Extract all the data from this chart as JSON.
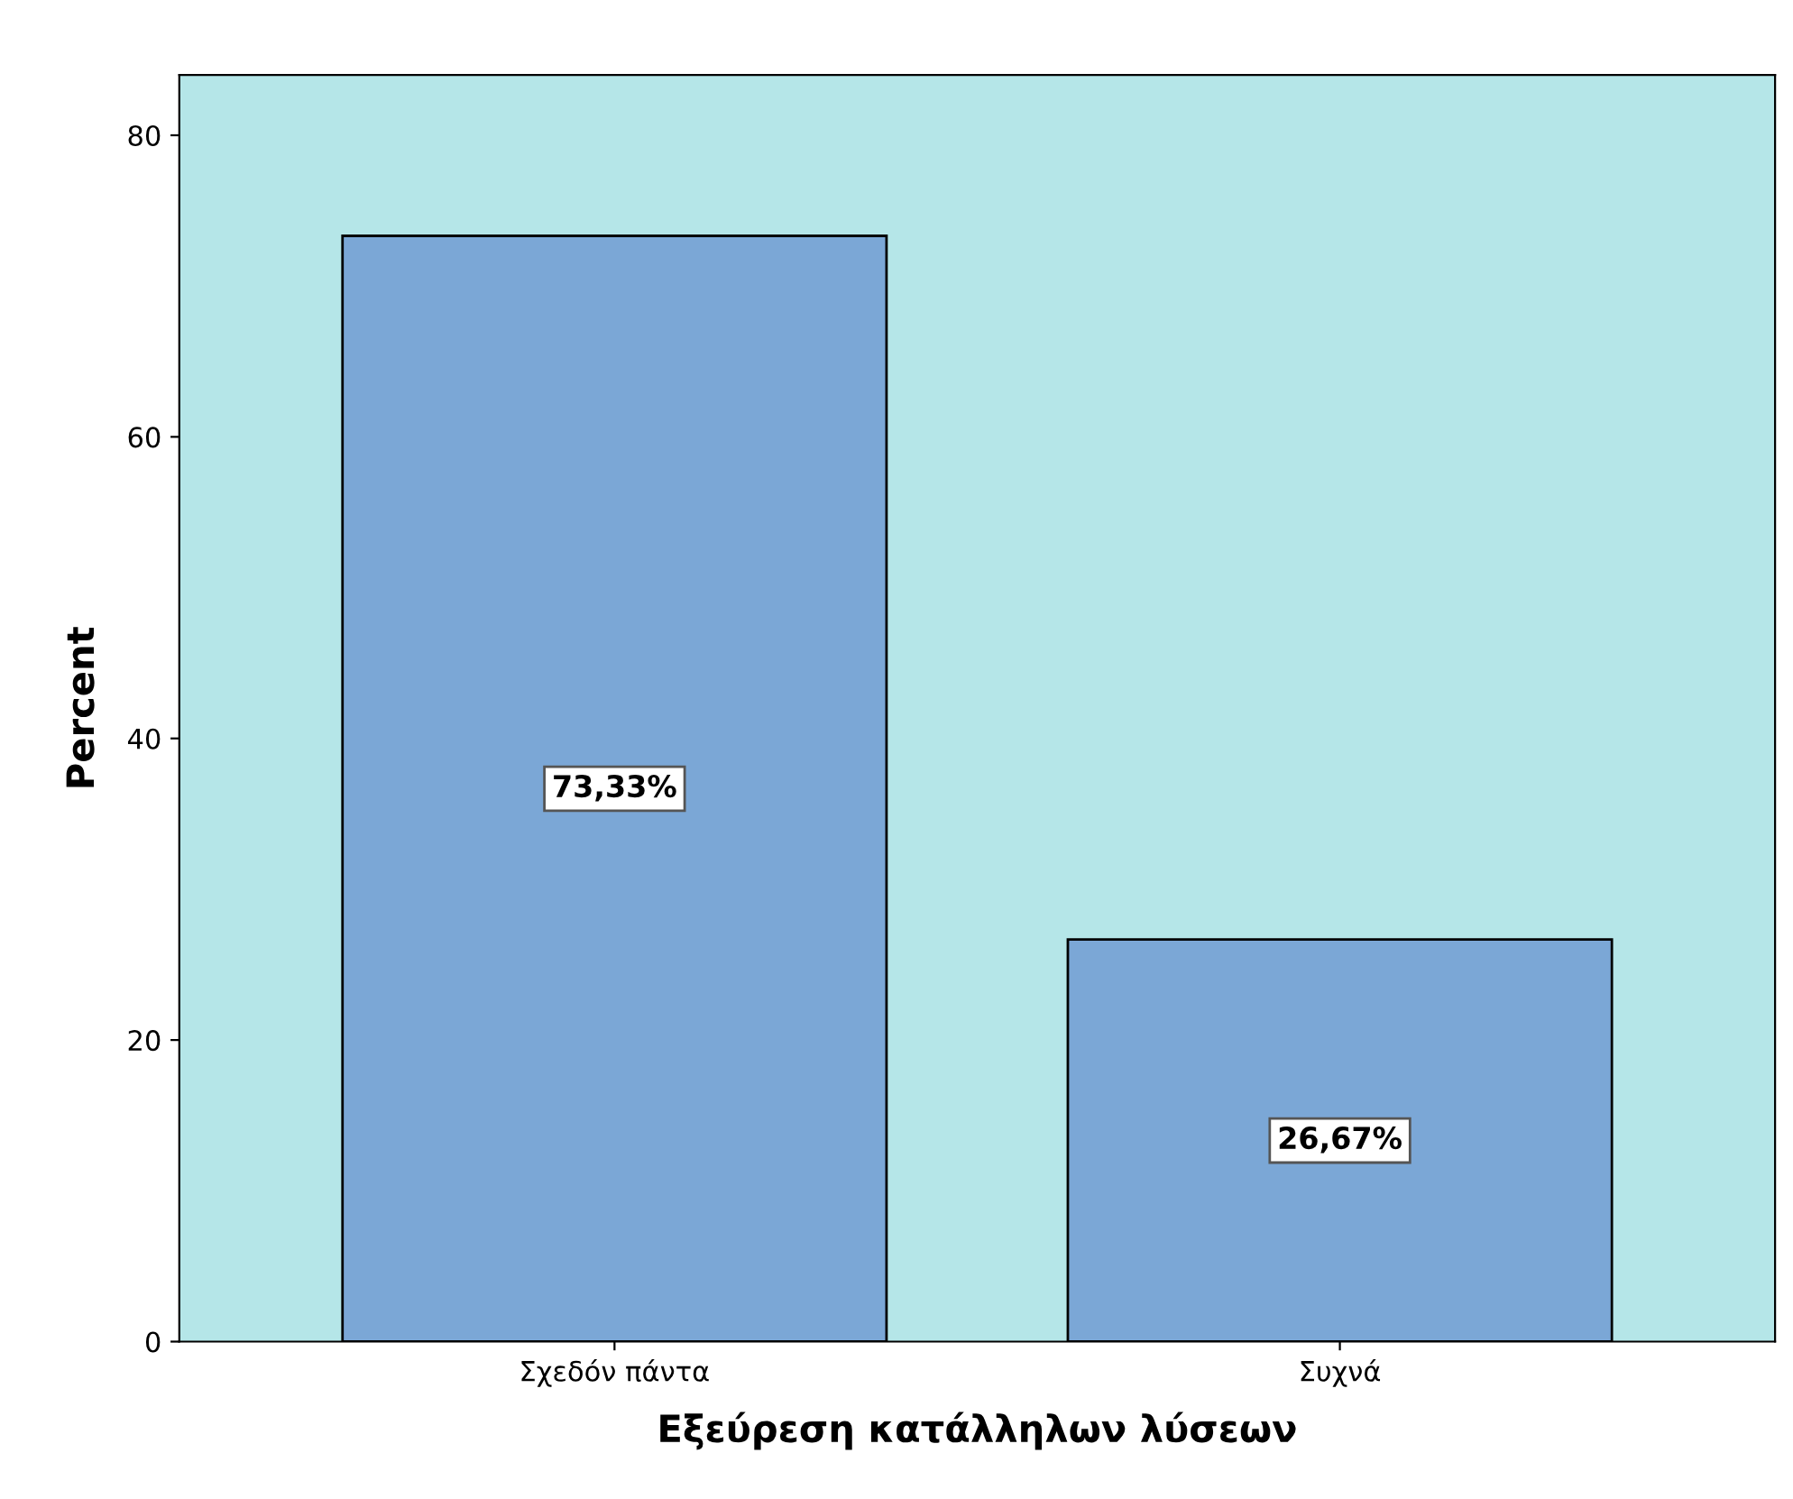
{
  "chart_data": {
    "type": "bar",
    "xlabel": "Εξεύρεση κατάλληλων λύσεων",
    "ylabel": "Percent",
    "categories": [
      "Σχεδόν πάντα",
      "Συχνά"
    ],
    "values": [
      73.33,
      26.67
    ],
    "color": "#7ba7d6",
    "value_labels": [
      "73,33%",
      "26,67%"
    ],
    "ylim": [
      0,
      84
    ],
    "yticks": [
      0,
      20,
      40,
      60,
      80
    ],
    "grid": false
  }
}
